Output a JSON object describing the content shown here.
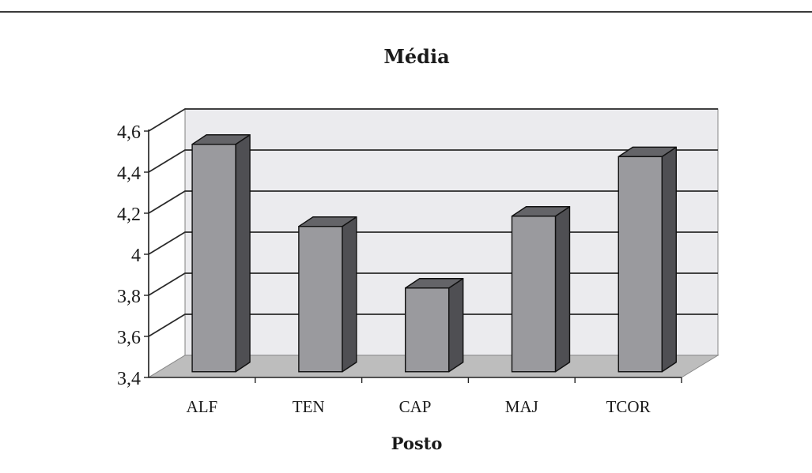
{
  "chart_data": {
    "type": "bar",
    "title": "Média",
    "xlabel": "Posto",
    "ylabel": "",
    "categories": [
      "ALF",
      "TEN",
      "CAP",
      "MAJ",
      "TCOR"
    ],
    "values": [
      4.5,
      4.1,
      3.8,
      4.15,
      4.44
    ],
    "ylim": [
      3.4,
      4.6
    ],
    "yticks": [
      3.4,
      3.6,
      3.8,
      4.0,
      4.2,
      4.4,
      4.6
    ],
    "ytick_labels": [
      "3,4",
      "3,6",
      "3,8",
      "4",
      "4,2",
      "4,4",
      "4,6"
    ],
    "grid": true,
    "style": "3d",
    "colors": {
      "bar_front": "#9a9a9e",
      "bar_side": "#4f4f53",
      "bar_top": "#646468",
      "back_wall": "#ebebee",
      "floor": "#bdbdbd",
      "grid": "#2a2a2a"
    }
  }
}
